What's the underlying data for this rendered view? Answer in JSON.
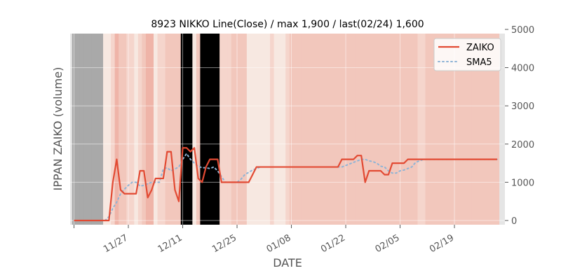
{
  "chart_data": {
    "type": "line",
    "title": "8923 NIKKO Line(Close) / max 1,900 / last(02/24) 1,600",
    "xlabel": "DATE",
    "ylabel": "IPPAN ZAIKO (volume)",
    "ylim": [
      0,
      5000
    ],
    "yticks": [
      0,
      1000,
      2000,
      3000,
      4000,
      5000
    ],
    "ytick_labels": [
      "0",
      "1000",
      "2000",
      "3000",
      "4000",
      "5000"
    ],
    "y_axis_side": "right",
    "x_range_index": [
      -1,
      111
    ],
    "xtick_positions": [
      0,
      14,
      28,
      42,
      56,
      70,
      84,
      98
    ],
    "xtick_labels": [
      "11/27",
      "12/11",
      "12/25",
      "01/08",
      "01/22",
      "02/05",
      "02/19"
    ],
    "xtick_label_index": [
      1,
      2,
      3,
      4,
      5,
      6,
      7
    ],
    "xtick_label_rotation": 30,
    "grid": true,
    "legend": {
      "placement": "top-right",
      "entries": [
        "ZAIKO",
        "SMA5"
      ]
    },
    "colors": {
      "plot_background": "#e5e5e5",
      "zaiko": "#e24a33",
      "sma": "#8eb4d6",
      "band_dark": "#a9a9a9",
      "band_palette": [
        "#f7e8e1",
        "#f5d5cc",
        "#f2c7bc",
        "#efb4a8"
      ]
    },
    "band_levels": [
      0,
      0,
      0,
      0,
      0,
      0,
      0,
      0,
      0,
      0,
      1,
      3,
      2,
      2,
      1,
      1,
      0,
      1,
      2,
      3,
      3,
      0,
      1,
      1,
      2,
      2,
      2,
      2,
      4,
      4,
      4,
      0,
      2,
      4,
      4,
      4,
      4,
      4,
      1,
      1,
      1,
      2,
      2,
      2,
      2,
      0,
      0,
      0,
      0,
      0,
      0,
      1,
      0,
      0,
      0,
      1,
      2,
      2,
      2,
      2,
      2,
      2,
      2,
      2,
      2,
      2,
      2,
      2,
      2,
      2,
      2,
      2,
      2,
      2,
      2,
      2,
      2,
      2,
      2,
      2,
      2,
      2,
      2,
      2,
      2,
      2,
      2,
      2,
      2,
      1,
      1,
      2,
      2,
      2,
      2,
      2,
      2,
      2,
      2,
      2,
      2,
      2,
      2,
      2,
      2,
      2,
      2,
      2,
      2,
      2
    ],
    "band_dark_count": 8,
    "series": [
      {
        "name": "ZAIKO",
        "values": [
          0,
          0,
          0,
          0,
          0,
          0,
          0,
          0,
          0,
          0,
          1000,
          1600,
          800,
          700,
          700,
          700,
          700,
          1300,
          1300,
          600,
          800,
          1100,
          1100,
          1100,
          1800,
          1800,
          800,
          500,
          1900,
          1900,
          1800,
          1900,
          1100,
          1000,
          1400,
          1600,
          1600,
          1600,
          1000,
          1000,
          1000,
          1000,
          1000,
          1000,
          1000,
          1000,
          1200,
          1400,
          1400,
          1400,
          1400,
          1400,
          1400,
          1400,
          1400,
          1400,
          1400,
          1400,
          1400,
          1400,
          1400,
          1400,
          1400,
          1400,
          1400,
          1400,
          1400,
          1400,
          1400,
          1600,
          1600,
          1600,
          1600,
          1700,
          1700,
          1000,
          1300,
          1300,
          1300,
          1300,
          1200,
          1200,
          1500,
          1500,
          1500,
          1500,
          1600,
          1600,
          1600,
          1600,
          1600,
          1600,
          1600,
          1600,
          1600,
          1600,
          1600,
          1600,
          1600,
          1600,
          1600,
          1600,
          1600,
          1600,
          1600,
          1600,
          1600,
          1600,
          1600,
          1600
        ]
      },
      {
        "name": "SMA5",
        "start_index": 8,
        "values": [
          0,
          100,
          320,
          480,
          700,
          820,
          920,
          1000,
          1000,
          900,
          920,
          960,
          1000,
          1000,
          1000,
          1350,
          1380,
          1300,
          1350,
          1400,
          1600,
          1750,
          1600,
          1500,
          1420,
          1380,
          1380,
          1360,
          1400,
          1300,
          1150,
          1000,
          1000,
          1000,
          1000,
          1080,
          1200,
          1260,
          1320,
          1360,
          1400,
          1400,
          1400,
          1400,
          1400,
          1400,
          1400,
          1400,
          1400,
          1400,
          1400,
          1400,
          1400,
          1400,
          1400,
          1400,
          1400,
          1400,
          1400,
          1400,
          1400,
          1400,
          1440,
          1480,
          1520,
          1560,
          1600,
          1600,
          1560,
          1540,
          1500,
          1420,
          1400,
          1300,
          1240,
          1240,
          1300,
          1320,
          1360,
          1400,
          1520,
          1560,
          1600,
          1600,
          1600,
          1600,
          1600,
          1600,
          1600,
          1600,
          1600,
          1600,
          1600,
          1600,
          1600,
          1600,
          1600,
          1600,
          1600,
          1600,
          1600,
          1600
        ]
      }
    ]
  }
}
